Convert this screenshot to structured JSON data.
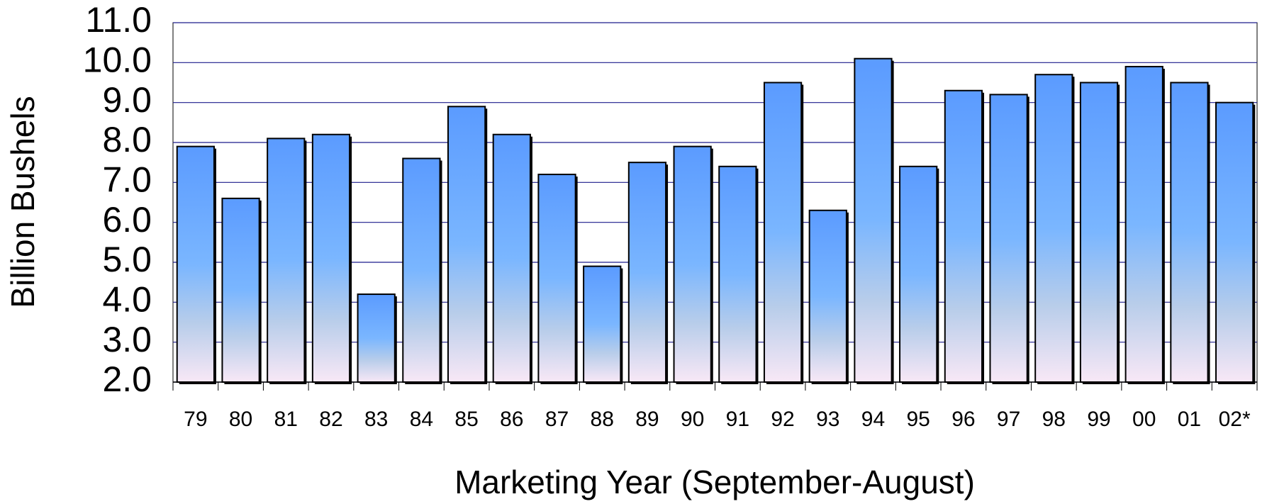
{
  "chart_data": {
    "type": "bar",
    "x_label": "Marketing Year (September-August)",
    "y_label": "Billion Bushels",
    "categories": [
      "79",
      "80",
      "81",
      "82",
      "83",
      "84",
      "85",
      "86",
      "87",
      "88",
      "89",
      "90",
      "91",
      "92",
      "93",
      "94",
      "95",
      "96",
      "97",
      "98",
      "99",
      "00",
      "01",
      "02*"
    ],
    "values": [
      7.9,
      6.6,
      8.1,
      8.2,
      4.2,
      7.6,
      8.9,
      8.2,
      7.2,
      4.9,
      7.5,
      7.9,
      7.4,
      9.5,
      6.3,
      10.1,
      7.4,
      9.3,
      9.2,
      9.7,
      9.5,
      9.9,
      9.5,
      9.0
    ],
    "color": "#5b9bff",
    "ylim": [
      2,
      11
    ],
    "yticks": [
      {
        "value": 2,
        "label": "2.0"
      },
      {
        "value": 3,
        "label": "3.0"
      },
      {
        "value": 4,
        "label": "4.0"
      },
      {
        "value": 5,
        "label": "5.0"
      },
      {
        "value": 6,
        "label": "6.0"
      },
      {
        "value": 7,
        "label": "7.0"
      },
      {
        "value": 8,
        "label": "8.0"
      },
      {
        "value": 9,
        "label": "9.0"
      },
      {
        "value": 10,
        "label": "10.0"
      },
      {
        "value": 11,
        "label": "11.0"
      }
    ],
    "grid": true
  }
}
